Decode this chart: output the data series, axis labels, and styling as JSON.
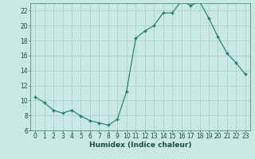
{
  "x": [
    0,
    1,
    2,
    3,
    4,
    5,
    6,
    7,
    8,
    9,
    10,
    11,
    12,
    13,
    14,
    15,
    16,
    17,
    18,
    19,
    20,
    21,
    22,
    23
  ],
  "y": [
    10.5,
    9.7,
    8.7,
    8.3,
    8.7,
    7.9,
    7.3,
    7.0,
    6.7,
    7.5,
    11.2,
    18.3,
    19.3,
    20.0,
    21.7,
    21.7,
    23.3,
    22.7,
    23.2,
    21.0,
    18.5,
    16.3,
    15.0,
    13.5
  ],
  "line_color": "#1a7a6e",
  "marker_color": "#1a7a6e",
  "bg_color": "#c8e8e2",
  "grid_color": "#aaccc6",
  "xlabel": "Humidex (Indice chaleur)",
  "xlim": [
    -0.5,
    23.5
  ],
  "ylim": [
    6,
    23
  ],
  "yticks": [
    6,
    8,
    10,
    12,
    14,
    16,
    18,
    20,
    22
  ],
  "xticks": [
    0,
    1,
    2,
    3,
    4,
    5,
    6,
    7,
    8,
    9,
    10,
    11,
    12,
    13,
    14,
    15,
    16,
    17,
    18,
    19,
    20,
    21,
    22,
    23
  ],
  "tick_fontsize": 5.5,
  "label_fontsize": 6.5
}
